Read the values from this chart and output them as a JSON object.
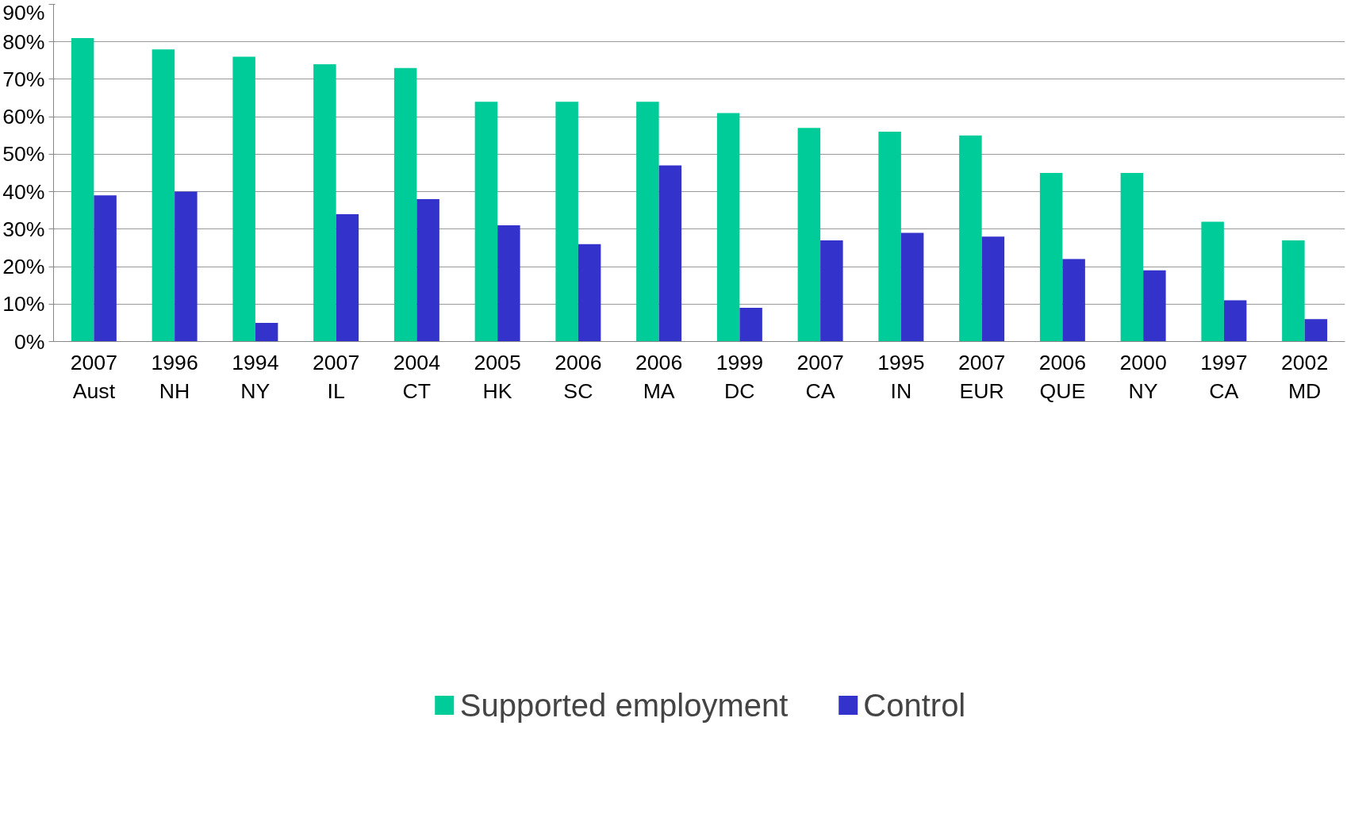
{
  "chart_data": {
    "type": "bar",
    "categories": [
      "2007\nAust",
      "1996\nNH",
      "1994\nNY",
      "2007\nIL",
      "2004\nCT",
      "2005\nHK",
      "2006\nSC",
      "2006\nMA",
      "1999\nDC",
      "2007\nCA",
      "1995\nIN",
      "2007\nEUR",
      "2006\nQUE",
      "2000\nNY",
      "1997\nCA",
      "2002\nMD"
    ],
    "series": [
      {
        "name": "Supported employment",
        "color": "#00cc99",
        "values": [
          81,
          78,
          76,
          74,
          73,
          64,
          64,
          64,
          61,
          57,
          56,
          55,
          45,
          45,
          32,
          27
        ]
      },
      {
        "name": "Control",
        "color": "#3333cc",
        "values": [
          39,
          40,
          5,
          34,
          38,
          31,
          26,
          47,
          9,
          27,
          29,
          28,
          22,
          19,
          11,
          6
        ]
      }
    ],
    "ylim": [
      0,
      90
    ],
    "yticks": [
      {
        "value": 0,
        "label": "0%"
      },
      {
        "value": 10,
        "label": "10%"
      },
      {
        "value": 20,
        "label": "20%"
      },
      {
        "value": 30,
        "label": "30%"
      },
      {
        "value": 40,
        "label": "40%"
      },
      {
        "value": 50,
        "label": "50%"
      },
      {
        "value": 60,
        "label": "60%"
      },
      {
        "value": 70,
        "label": "70%"
      },
      {
        "value": 80,
        "label": "80%"
      },
      {
        "value": 90,
        "label": "90%"
      }
    ],
    "grid": "y",
    "legend": "bottom"
  }
}
